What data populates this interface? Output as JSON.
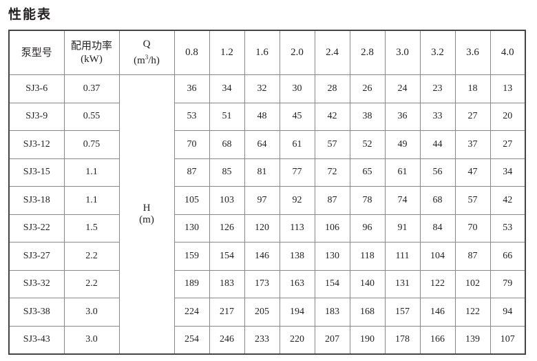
{
  "title": "性能表",
  "header": {
    "model": "泵型号",
    "power_label": "配用功率",
    "power_unit": "(kW)",
    "q_label": "Q",
    "q_unit_pre": "(m",
    "q_unit_sup": "3",
    "q_unit_post": "/h)",
    "flows": [
      "0.8",
      "1.2",
      "1.6",
      "2.0",
      "2.4",
      "2.8",
      "3.0",
      "3.2",
      "3.6",
      "4.0"
    ]
  },
  "h_label": "H",
  "h_unit": "(m)",
  "rows": [
    {
      "model": "SJ3-6",
      "power": "0.37",
      "heads": [
        "36",
        "34",
        "32",
        "30",
        "28",
        "26",
        "24",
        "23",
        "18",
        "13"
      ]
    },
    {
      "model": "SJ3-9",
      "power": "0.55",
      "heads": [
        "53",
        "51",
        "48",
        "45",
        "42",
        "38",
        "36",
        "33",
        "27",
        "20"
      ]
    },
    {
      "model": "SJ3-12",
      "power": "0.75",
      "heads": [
        "70",
        "68",
        "64",
        "61",
        "57",
        "52",
        "49",
        "44",
        "37",
        "27"
      ]
    },
    {
      "model": "SJ3-15",
      "power": "1.1",
      "heads": [
        "87",
        "85",
        "81",
        "77",
        "72",
        "65",
        "61",
        "56",
        "47",
        "34"
      ]
    },
    {
      "model": "SJ3-18",
      "power": "1.1",
      "heads": [
        "105",
        "103",
        "97",
        "92",
        "87",
        "78",
        "74",
        "68",
        "57",
        "42"
      ]
    },
    {
      "model": "SJ3-22",
      "power": "1.5",
      "heads": [
        "130",
        "126",
        "120",
        "113",
        "106",
        "96",
        "91",
        "84",
        "70",
        "53"
      ]
    },
    {
      "model": "SJ3-27",
      "power": "2.2",
      "heads": [
        "159",
        "154",
        "146",
        "138",
        "130",
        "118",
        "111",
        "104",
        "87",
        "66"
      ]
    },
    {
      "model": "SJ3-32",
      "power": "2.2",
      "heads": [
        "189",
        "183",
        "173",
        "163",
        "154",
        "140",
        "131",
        "122",
        "102",
        "79"
      ]
    },
    {
      "model": "SJ3-38",
      "power": "3.0",
      "heads": [
        "224",
        "217",
        "205",
        "194",
        "183",
        "168",
        "157",
        "146",
        "122",
        "94"
      ]
    },
    {
      "model": "SJ3-43",
      "power": "3.0",
      "heads": [
        "254",
        "246",
        "233",
        "220",
        "207",
        "190",
        "178",
        "166",
        "139",
        "107"
      ]
    }
  ]
}
